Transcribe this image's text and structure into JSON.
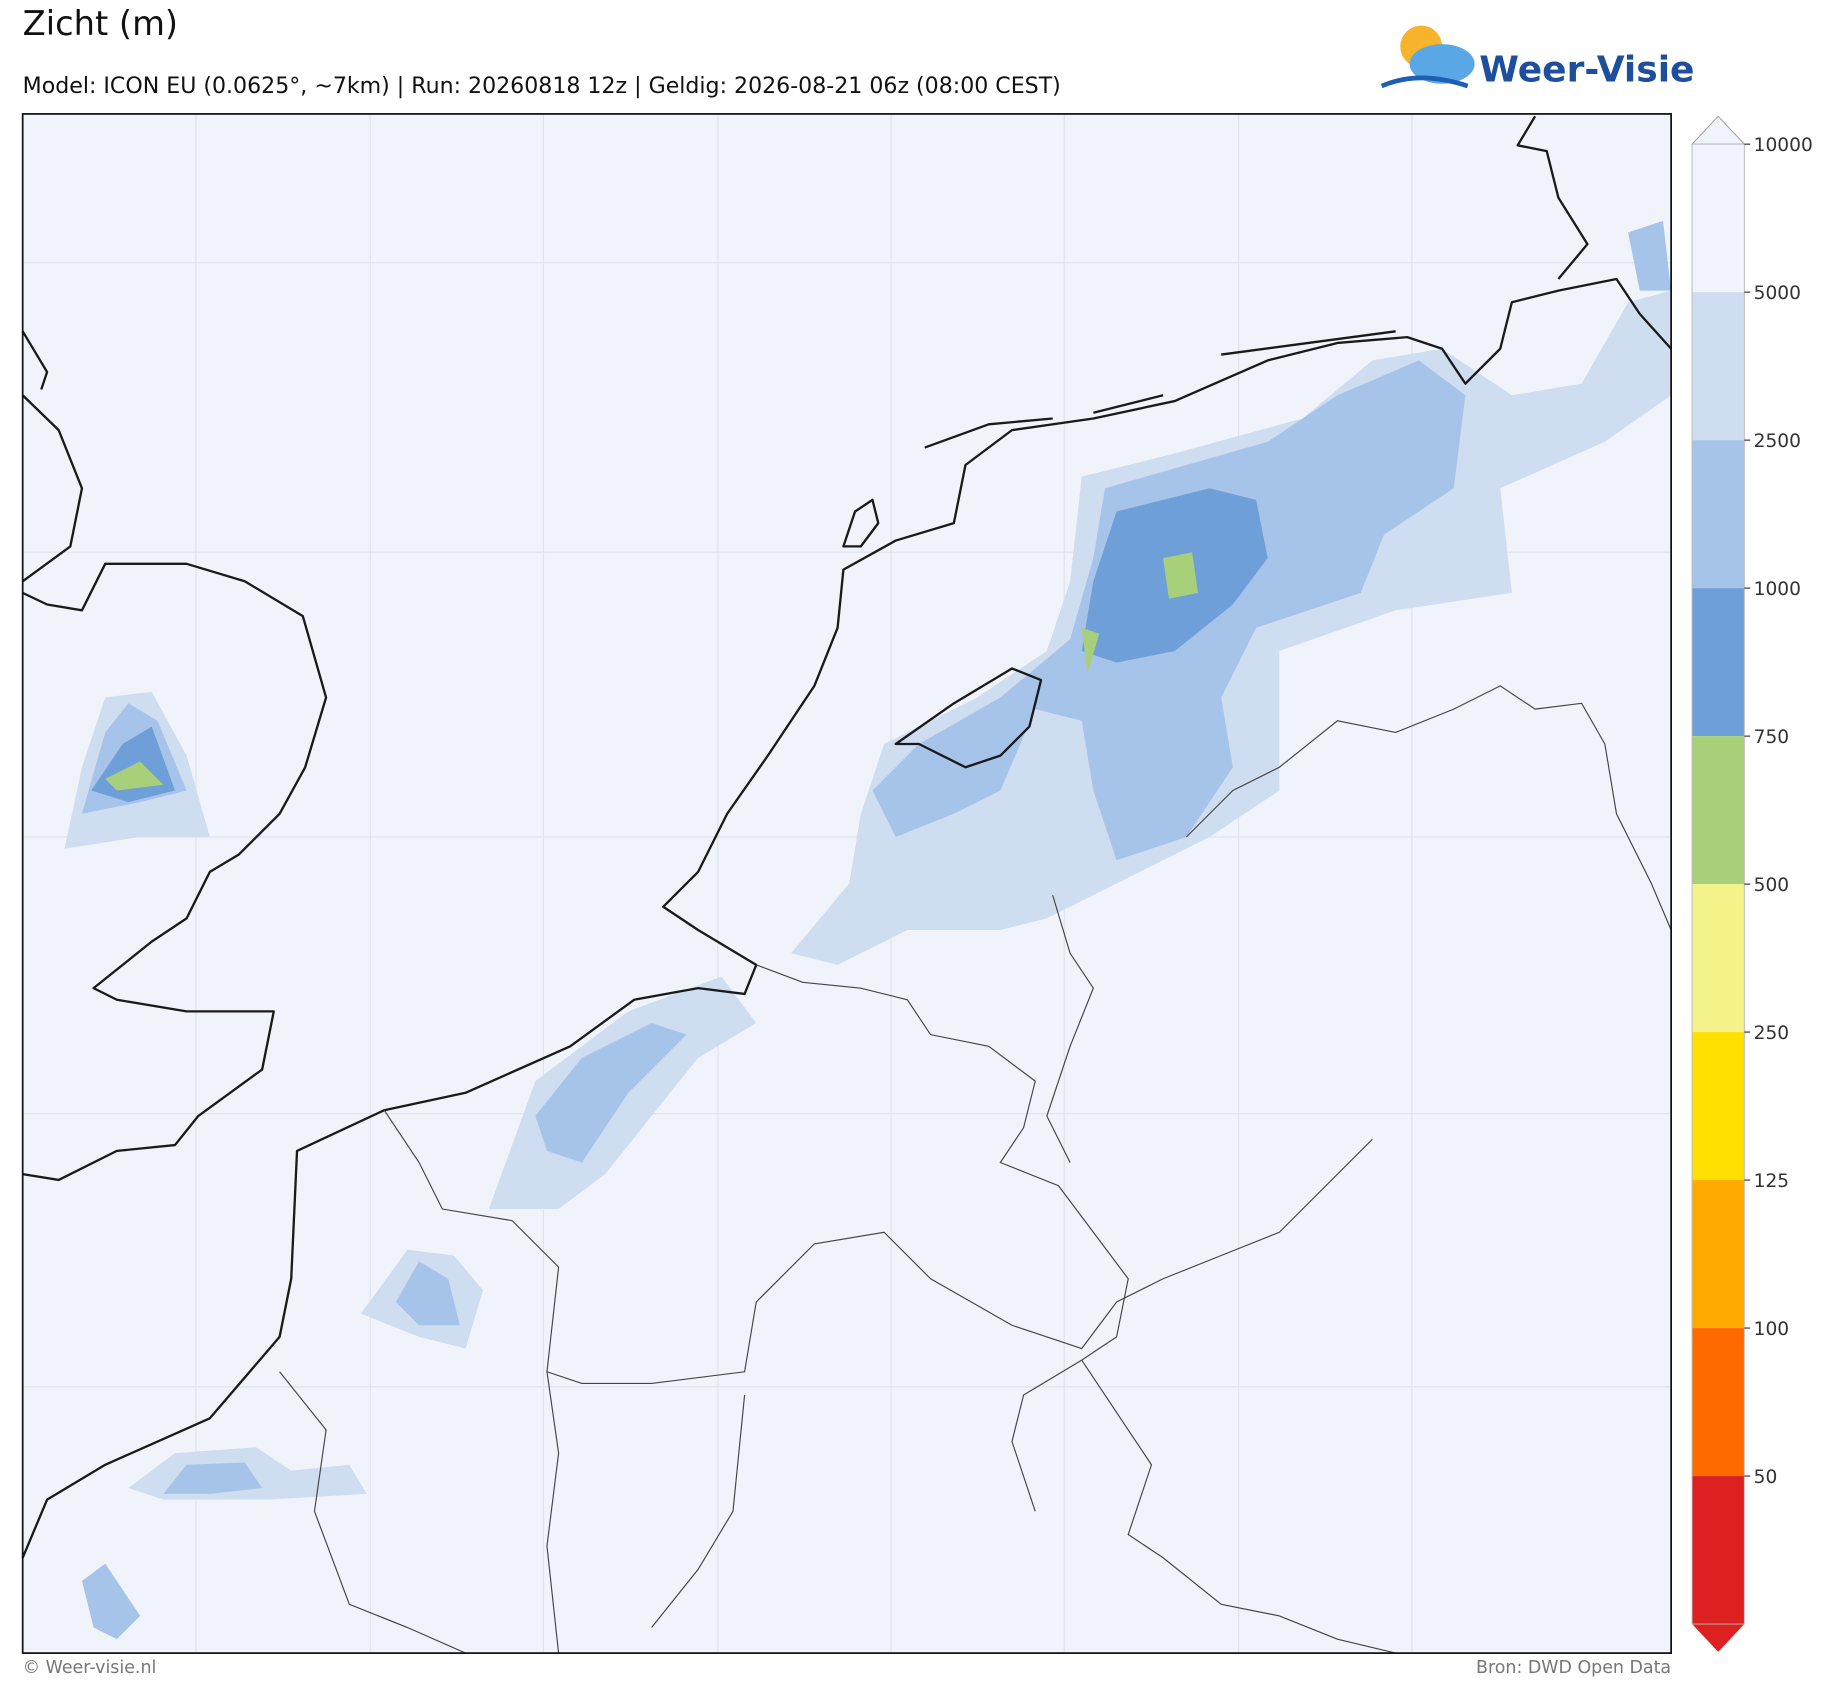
{
  "header": {
    "title": "Zicht (m)",
    "subtitle": "Model: ICON EU (0.0625°, ~7km)  |  Run: 20260818 12z  |  Geldig: 2026-08-21 06z (08:00 CEST)",
    "logo": "Weer-Visie"
  },
  "colorbar": {
    "levels": [
      10000,
      5000,
      2500,
      1000,
      750,
      500,
      250,
      125,
      100,
      50
    ],
    "colors": [
      "#f0f4fa",
      "#cfddf1",
      "#a6c3e9",
      "#6f9fd8",
      "#a8d07a",
      "#f3f38a",
      "#ffe000",
      "#ffaa00",
      "#ff6a00",
      "#dd2020"
    ],
    "over_color": "#f0f4fa"
  },
  "footer": {
    "left": "© Weer-visie.nl",
    "right": "Bron: DWD Open Data"
  }
}
